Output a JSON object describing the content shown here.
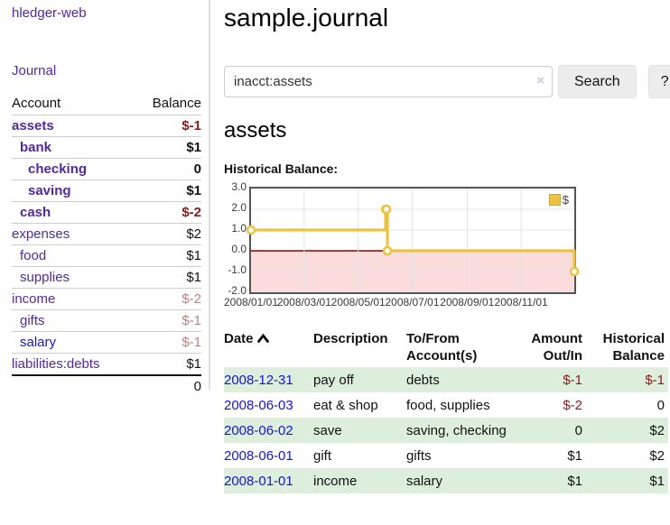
{
  "app": {
    "title": "hledger-web",
    "nav_journal": "Journal"
  },
  "sidebar": {
    "accounts_header": {
      "account": "Account",
      "balance": "Balance"
    },
    "accounts": [
      {
        "name": "assets",
        "depth": 1,
        "balance": "$-1",
        "bold": true
      },
      {
        "name": "bank",
        "depth": 2,
        "balance": "$1",
        "bold": true
      },
      {
        "name": "checking",
        "depth": 3,
        "balance": "0",
        "bold": true
      },
      {
        "name": "saving",
        "depth": 3,
        "balance": "$1",
        "bold": true
      },
      {
        "name": "cash",
        "depth": 2,
        "balance": "$-2",
        "bold": true
      },
      {
        "name": "expenses",
        "depth": 1,
        "balance": "$2",
        "bold": false
      },
      {
        "name": "food",
        "depth": 2,
        "balance": "$1",
        "bold": false
      },
      {
        "name": "supplies",
        "depth": 2,
        "balance": "$1",
        "bold": false
      },
      {
        "name": "income",
        "depth": 1,
        "balance": "$-2",
        "bold": false
      },
      {
        "name": "gifts",
        "depth": 2,
        "balance": "$-1",
        "bold": false
      },
      {
        "name": "salary",
        "depth": 2,
        "balance": "$-1",
        "bold": false,
        "blue": true
      },
      {
        "name": "liabilities:debts",
        "depth": 1,
        "balance": "$1",
        "bold": false
      }
    ],
    "total": "0"
  },
  "header": {
    "title": "sample.journal"
  },
  "search": {
    "value": "inacct:assets",
    "clear_icon": "×",
    "button": "Search",
    "help_button": "?"
  },
  "account_page": {
    "title": "assets",
    "chart_label": "Historical Balance:"
  },
  "chart_data": {
    "type": "line",
    "title": "Historical Balance",
    "step": true,
    "legend": [
      {
        "label": "$",
        "color": "#edc240"
      }
    ],
    "ylim": [
      -2.0,
      3.0
    ],
    "x_range_days": [
      0,
      365
    ],
    "y_ticks": [
      {
        "label": "3.0",
        "v": 3
      },
      {
        "label": "2.0",
        "v": 2
      },
      {
        "label": "1.0",
        "v": 1
      },
      {
        "label": "0.0",
        "v": 0
      },
      {
        "label": "-1.0",
        "v": -1
      },
      {
        "label": "-2.0",
        "v": -2
      }
    ],
    "x_ticks": [
      {
        "label": "2008/01/01",
        "day": 0
      },
      {
        "label": "2008/03/01",
        "day": 60
      },
      {
        "label": "2008/05/01",
        "day": 121
      },
      {
        "label": "2008/07/01",
        "day": 182
      },
      {
        "label": "2008/09/01",
        "day": 244
      },
      {
        "label": "2008/11/01",
        "day": 305
      }
    ],
    "points": [
      {
        "date": "2008-01-01",
        "day": 0,
        "y": 1
      },
      {
        "date": "2008-06-01",
        "day": 152,
        "y": 2
      },
      {
        "date": "2008-06-02",
        "day": 153,
        "y": 2
      },
      {
        "date": "2008-06-03",
        "day": 154,
        "y": 0
      },
      {
        "date": "2008-12-31",
        "day": 365,
        "y": -1
      }
    ],
    "line_color": "#edc240",
    "marker_fill": "#ffffff",
    "grid_color": "#e3e3e3",
    "zero_line_color": "#8b0000",
    "negative_region_color": "#fadcdc",
    "border_color": "#545454"
  },
  "register": {
    "columns": [
      "Date",
      "Description",
      "To/From Account(s)",
      "Amount Out/In",
      "Historical Balance"
    ],
    "sort": "ascending",
    "rows": [
      {
        "date": "2008-12-31",
        "description": "pay off",
        "accounts": "debts",
        "amount": "$-1",
        "balance": "$-1"
      },
      {
        "date": "2008-06-03",
        "description": "eat & shop",
        "accounts": "food, supplies",
        "amount": "$-2",
        "balance": "0"
      },
      {
        "date": "2008-06-02",
        "description": "save",
        "accounts": "saving, checking",
        "amount": "0",
        "balance": "$2"
      },
      {
        "date": "2008-06-01",
        "description": "gift",
        "accounts": "gifts",
        "amount": "$1",
        "balance": "$2"
      },
      {
        "date": "2008-01-01",
        "description": "income",
        "accounts": "salary",
        "amount": "$1",
        "balance": "$1"
      }
    ]
  }
}
